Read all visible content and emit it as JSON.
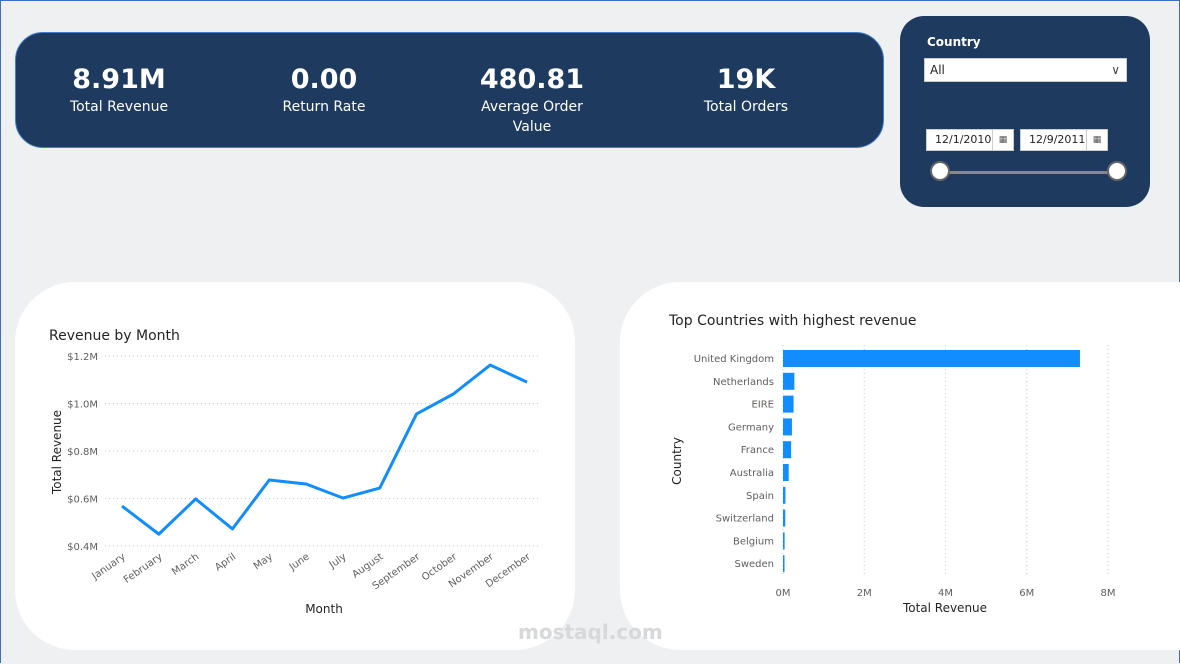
{
  "kpis": [
    {
      "value": "8.91M",
      "label": "Total Revenue"
    },
    {
      "value": "0.00",
      "label": "Return Rate"
    },
    {
      "value": "480.81",
      "label": "Average Order Value"
    },
    {
      "value": "19K",
      "label": "Total Orders"
    }
  ],
  "filters": {
    "country_label": "Country",
    "country_value": "All",
    "date_start": "12/1/2010",
    "date_end": "12/9/2011",
    "date_range_fraction": [
      0,
      1
    ]
  },
  "watermark": "mostaql.com",
  "colors": {
    "accent": "#118dff",
    "panel": "#1f3a5f"
  },
  "chart_data": [
    {
      "type": "line",
      "title": "Revenue by Month",
      "xlabel": "Month",
      "ylabel": "Total Revenue",
      "categories": [
        "January",
        "February",
        "March",
        "April",
        "May",
        "June",
        "July",
        "August",
        "September",
        "October",
        "November",
        "December"
      ],
      "values": [
        0.568,
        0.45,
        0.598,
        0.472,
        0.678,
        0.661,
        0.602,
        0.644,
        0.956,
        1.04,
        1.162,
        1.09
      ],
      "unit": "M",
      "ylim": [
        0.4,
        1.2
      ],
      "yticks": [
        "$0.4M",
        "$0.6M",
        "$0.8M",
        "$1.0M",
        "$1.2M"
      ],
      "ytick_values": [
        0.4,
        0.6,
        0.8,
        1.0,
        1.2
      ],
      "grid": true
    },
    {
      "type": "bar",
      "orientation": "horizontal",
      "title": "Top Countries with highest revenue",
      "xlabel": "Total Revenue",
      "ylabel": "Country",
      "categories": [
        "United Kingdom",
        "Netherlands",
        "EIRE",
        "Germany",
        "France",
        "Australia",
        "Spain",
        "Switzerland",
        "Belgium",
        "Sweden"
      ],
      "values": [
        7.31,
        0.28,
        0.26,
        0.22,
        0.2,
        0.14,
        0.06,
        0.055,
        0.04,
        0.035
      ],
      "unit": "M",
      "xlim": [
        0,
        8
      ],
      "xticks": [
        "0M",
        "2M",
        "4M",
        "6M",
        "8M"
      ],
      "xtick_values": [
        0,
        2,
        4,
        6,
        8
      ],
      "grid": true
    }
  ]
}
